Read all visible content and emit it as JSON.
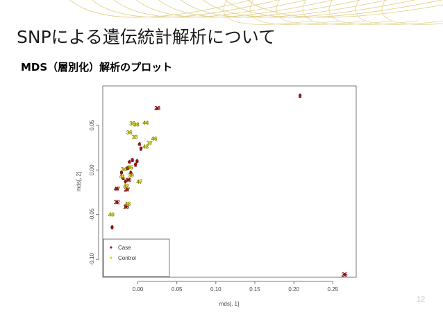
{
  "slide": {
    "title": "SNPによる遺伝統計解析について",
    "subtitle": "MDS（層別化）解析のプロット",
    "page_number": "12"
  },
  "colors": {
    "case": "#9b1b1b",
    "control": "#d8d800",
    "deco_lines": "#e2d28c",
    "axis": "#555555"
  },
  "chart_data": {
    "type": "scatter",
    "title": "",
    "xlabel": "mds[, 1]",
    "ylabel": "mds[, 2]",
    "xlim": [
      -0.045,
      0.28
    ],
    "ylim": [
      -0.12,
      0.094
    ],
    "xticks": [
      0.0,
      0.05,
      0.1,
      0.15,
      0.2,
      0.25
    ],
    "xtick_labels": [
      "0.00",
      "0.05",
      "0.10",
      "0.15",
      "0.20",
      "0.25"
    ],
    "yticks": [
      -0.1,
      -0.05,
      0.0,
      0.05
    ],
    "ytick_labels": [
      "-0.10",
      "-0.05",
      "0.00",
      "0.05"
    ],
    "grid": false,
    "legend_position": "bottom-left",
    "series": [
      {
        "name": "Case",
        "marker": "•",
        "points": [
          {
            "x": 0.208,
            "y": 0.083,
            "label": "2"
          },
          {
            "x": 0.265,
            "y": -0.117,
            "label": "26"
          },
          {
            "x": 0.025,
            "y": 0.069,
            "label": "28"
          },
          {
            "x": 0.002,
            "y": 0.029,
            "label": "4"
          },
          {
            "x": 0.004,
            "y": 0.024,
            "label": "2"
          },
          {
            "x": -0.011,
            "y": 0.009,
            "label": "4"
          },
          {
            "x": -0.007,
            "y": 0.011,
            "label": "3"
          },
          {
            "x": -0.003,
            "y": 0.006,
            "label": "2"
          },
          {
            "x": -0.001,
            "y": 0.01,
            "label": "6"
          },
          {
            "x": -0.013,
            "y": 0.002,
            "label": "8"
          },
          {
            "x": -0.009,
            "y": -0.003,
            "label": "1"
          },
          {
            "x": -0.019,
            "y": -0.009,
            "label": "5"
          },
          {
            "x": -0.021,
            "y": -0.003,
            "label": "9"
          },
          {
            "x": -0.016,
            "y": -0.013,
            "label": "7"
          },
          {
            "x": -0.012,
            "y": -0.011,
            "label": "10"
          },
          {
            "x": -0.014,
            "y": -0.022,
            "label": "27"
          },
          {
            "x": -0.027,
            "y": -0.021,
            "label": "47"
          },
          {
            "x": -0.027,
            "y": -0.036,
            "label": "32"
          },
          {
            "x": -0.015,
            "y": -0.041,
            "label": "18"
          },
          {
            "x": -0.033,
            "y": -0.064,
            "label": "6"
          }
        ]
      },
      {
        "name": "Control",
        "marker": "•",
        "points": [
          {
            "x": -0.007,
            "y": 0.052,
            "label": "35"
          },
          {
            "x": -0.002,
            "y": 0.051,
            "label": "38"
          },
          {
            "x": 0.01,
            "y": 0.053,
            "label": "44"
          },
          {
            "x": -0.011,
            "y": 0.042,
            "label": "36"
          },
          {
            "x": -0.004,
            "y": 0.037,
            "label": "33"
          },
          {
            "x": 0.021,
            "y": 0.035,
            "label": "46"
          },
          {
            "x": 0.015,
            "y": 0.03,
            "label": "37"
          },
          {
            "x": 0.01,
            "y": 0.026,
            "label": "43"
          },
          {
            "x": 0.002,
            "y": -0.013,
            "label": "47"
          },
          {
            "x": -0.013,
            "y": -0.038,
            "label": "48"
          },
          {
            "x": -0.034,
            "y": -0.05,
            "label": "40"
          },
          {
            "x": -0.02,
            "y": -0.007,
            "label": "41"
          },
          {
            "x": -0.009,
            "y": -0.006,
            "label": "39"
          },
          {
            "x": -0.018,
            "y": 0.001,
            "label": "34"
          },
          {
            "x": -0.01,
            "y": 0.003,
            "label": "45"
          },
          {
            "x": -0.015,
            "y": -0.018,
            "label": "42"
          }
        ]
      }
    ]
  }
}
